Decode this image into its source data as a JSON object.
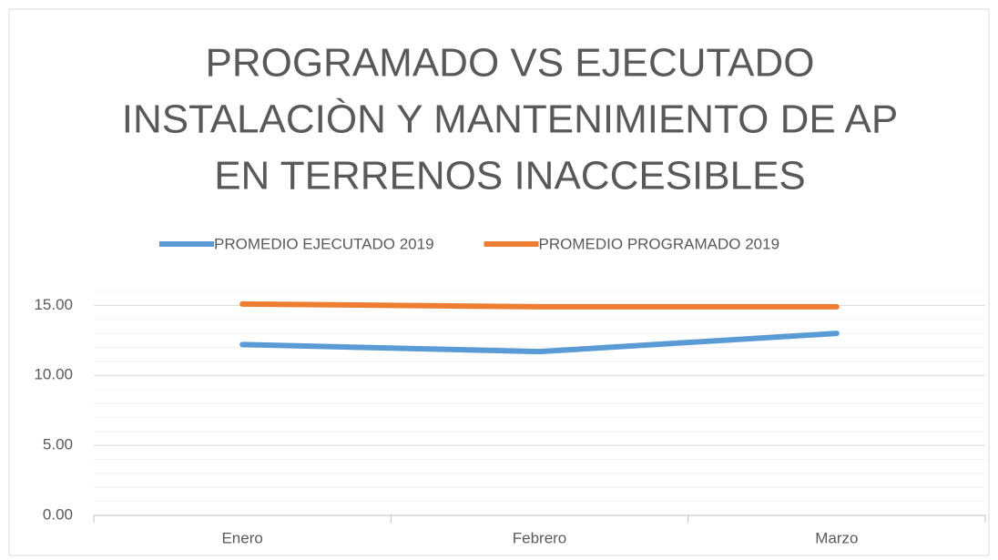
{
  "chart_data": {
    "type": "line",
    "title": [
      "PROGRAMADO VS EJECUTADO",
      "INSTALACIÒN Y MANTENIMIENTO DE AP",
      "EN TERRENOS INACCESIBLES"
    ],
    "categories": [
      "Enero",
      "Febrero",
      "Marzo"
    ],
    "series": [
      {
        "name": "PROMEDIO EJECUTADO 2019",
        "color": "#5b9bd5",
        "values": [
          12.2,
          11.7,
          13.0
        ]
      },
      {
        "name": "PROMEDIO PROGRAMADO 2019",
        "color": "#ed7d31",
        "values": [
          15.1,
          14.9,
          14.9
        ]
      }
    ],
    "ylim": [
      0,
      16
    ],
    "yticks": [
      {
        "value": 0,
        "label": "0.00"
      },
      {
        "value": 5,
        "label": "5.00"
      },
      {
        "value": 10,
        "label": "10.00"
      },
      {
        "value": 15,
        "label": "15.00"
      }
    ],
    "minor_yticks": [
      1,
      2,
      3,
      4,
      6,
      7,
      8,
      9,
      11,
      12,
      13,
      14,
      16
    ],
    "grid": true,
    "legend": "top"
  }
}
